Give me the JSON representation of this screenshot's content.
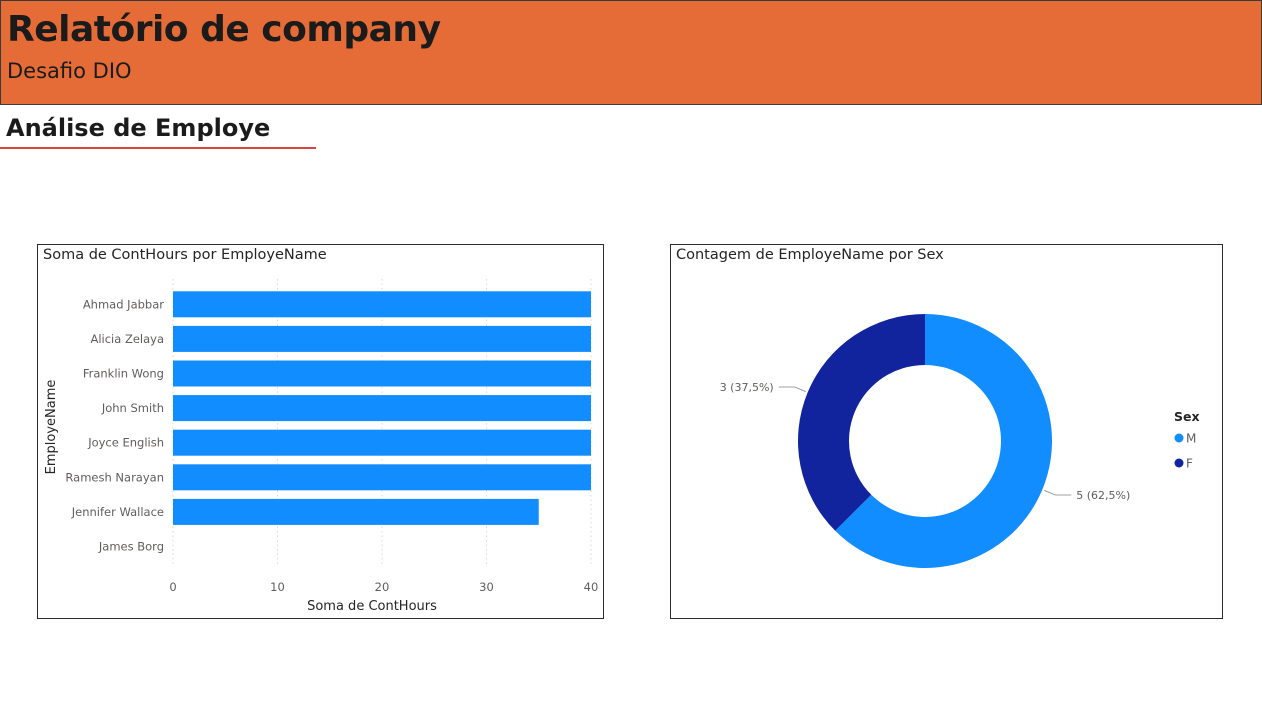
{
  "header": {
    "title": "Relatório de company",
    "subtitle": "Desafio DIO"
  },
  "section": {
    "title": "Análise de Employe"
  },
  "colors": {
    "header_bg": "#e56c37",
    "underline": "#d9473f",
    "bar": "#118dff",
    "male": "#118dff",
    "female": "#12239e"
  },
  "chart_data": [
    {
      "type": "bar",
      "orientation": "horizontal",
      "title": "Soma de ContHours por EmployeName",
      "xlabel": "Soma de ContHours",
      "ylabel": "EmployeName",
      "categories": [
        "Ahmad Jabbar",
        "Alicia Zelaya",
        "Franklin Wong",
        "John Smith",
        "Joyce English",
        "Ramesh Narayan",
        "Jennifer Wallace",
        "James Borg"
      ],
      "values": [
        40,
        40,
        40,
        40,
        40,
        40,
        35,
        0
      ],
      "xlim": [
        0,
        40
      ],
      "xticks": [
        "0",
        "10",
        "20",
        "30",
        "40"
      ],
      "grid": true
    },
    {
      "type": "pie",
      "donut": true,
      "title": "Contagem de EmployeName por Sex",
      "legend_title": "Sex",
      "legend_position": "right",
      "slices": [
        {
          "label": "M",
          "value": 5,
          "data_label": "5 (62,5%)"
        },
        {
          "label": "F",
          "value": 3,
          "data_label": "3 (37,5%)"
        }
      ]
    }
  ]
}
